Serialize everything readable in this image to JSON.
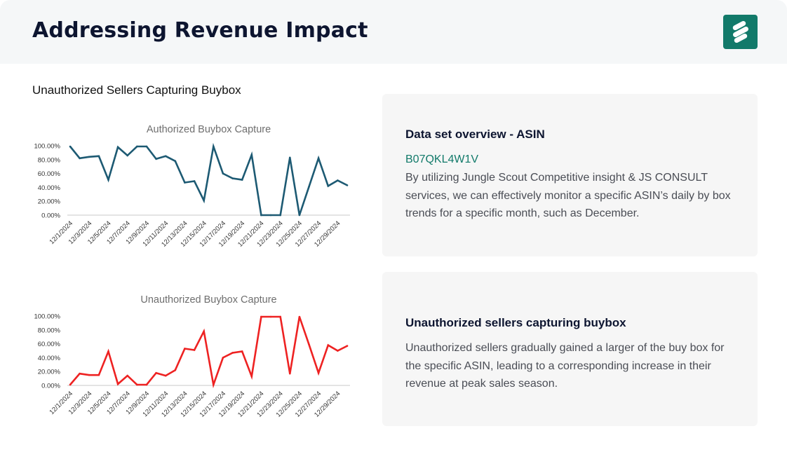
{
  "header": {
    "title": "Addressing Revenue Impact",
    "logo_icon": "jungle-scout-logo-icon",
    "logo_color": "#127a6a"
  },
  "section_label": "Unauthorized Sellers Capturing Buybox",
  "chart_data": [
    {
      "type": "line",
      "title": "Authorized Buybox Capture",
      "color": "#1d5a73",
      "x": [
        "12/1/2024",
        "12/2/2024",
        "12/3/2024",
        "12/4/2024",
        "12/5/2024",
        "12/6/2024",
        "12/7/2024",
        "12/8/2024",
        "12/9/2024",
        "12/10/2024",
        "12/11/2024",
        "12/12/2024",
        "12/13/2024",
        "12/14/2024",
        "12/15/2024",
        "12/16/2024",
        "12/17/2024",
        "12/18/2024",
        "12/19/2024",
        "12/20/2024",
        "12/21/2024",
        "12/22/2024",
        "12/23/2024",
        "12/24/2024",
        "12/25/2024",
        "12/26/2024",
        "12/27/2024",
        "12/28/2024",
        "12/29/2024",
        "12/30/2024"
      ],
      "x_tick_labels": [
        "12/1/2024",
        "12/3/2024",
        "12/5/2024",
        "12/7/2024",
        "12/9/2024",
        "12/11/2024",
        "12/13/2024",
        "12/15/2024",
        "12/17/2024",
        "12/19/2024",
        "12/21/2024",
        "12/23/2024",
        "12/25/2024",
        "12/27/2024",
        "12/29/2024"
      ],
      "values": [
        99,
        82,
        84,
        85,
        51,
        98,
        86,
        99,
        99,
        81,
        85,
        78,
        47,
        49,
        21,
        99,
        60,
        53,
        51,
        87,
        0,
        0,
        0,
        83,
        0,
        41,
        82,
        42,
        50,
        43
      ],
      "y_tick_labels": [
        "0.00%",
        "20.00%",
        "40.00%",
        "60.00%",
        "80.00%",
        "100.00%"
      ],
      "ylim": [
        0,
        100
      ],
      "grid": false
    },
    {
      "type": "line",
      "title": "Unauthorized Buybox Capture",
      "color": "#ee2222",
      "x": [
        "12/1/2024",
        "12/2/2024",
        "12/3/2024",
        "12/4/2024",
        "12/5/2024",
        "12/6/2024",
        "12/7/2024",
        "12/8/2024",
        "12/9/2024",
        "12/10/2024",
        "12/11/2024",
        "12/12/2024",
        "12/13/2024",
        "12/14/2024",
        "12/15/2024",
        "12/16/2024",
        "12/17/2024",
        "12/18/2024",
        "12/19/2024",
        "12/20/2024",
        "12/21/2024",
        "12/22/2024",
        "12/23/2024",
        "12/24/2024",
        "12/25/2024",
        "12/26/2024",
        "12/27/2024",
        "12/28/2024",
        "12/29/2024",
        "12/30/2024"
      ],
      "x_tick_labels": [
        "12/1/2024",
        "12/3/2024",
        "12/5/2024",
        "12/7/2024",
        "12/9/2024",
        "12/11/2024",
        "12/13/2024",
        "12/15/2024",
        "12/17/2024",
        "12/19/2024",
        "12/21/2024",
        "12/23/2024",
        "12/25/2024",
        "12/27/2024",
        "12/29/2024"
      ],
      "values": [
        1,
        17,
        15,
        15,
        49,
        2,
        14,
        1,
        1,
        18,
        14,
        22,
        53,
        51,
        78,
        1,
        40,
        47,
        49,
        13,
        99,
        99,
        99,
        17,
        99,
        59,
        18,
        58,
        50,
        57
      ],
      "y_tick_labels": [
        "0.00%",
        "20.00%",
        "40.00%",
        "60.00%",
        "80.00%",
        "100.00%"
      ],
      "ylim": [
        0,
        100
      ],
      "grid": false
    }
  ],
  "info_boxes": [
    {
      "heading": "Data set overview - ASIN",
      "asin": "B07QKL4W1V",
      "text": "By utilizing Jungle Scout Competitive insight & JS CONSULT services, we can effectively monitor a specific ASIN’s daily by box trends for a specific month, such as December."
    },
    {
      "heading": "Unauthorized sellers capturing buybox",
      "text": "Unauthorized sellers gradually gained a larger of the buy box for the specific ASIN, leading to a corresponding increase in their revenue at peak sales season."
    }
  ]
}
